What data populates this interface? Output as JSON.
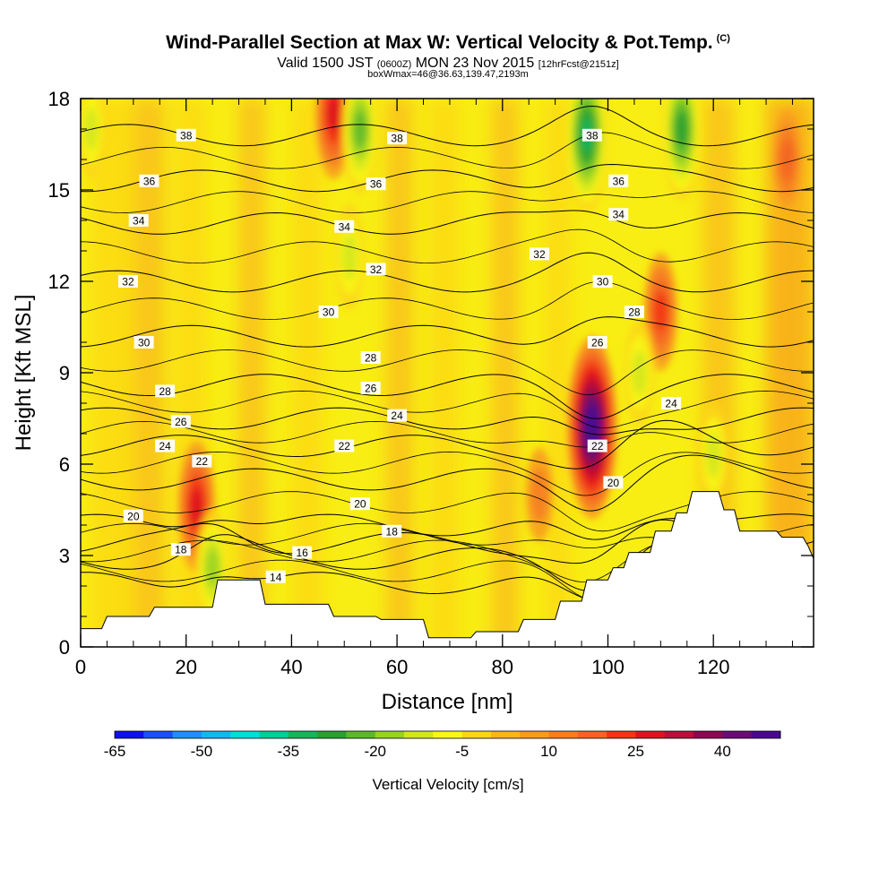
{
  "title": "Wind-Parallel Section at Max W: Vertical Velocity & Pot.Temp.",
  "title_mark": "(C)",
  "subtitle_a": "Valid 1500 JST",
  "subtitle_b": "(0600Z)",
  "subtitle_c": "MON 23 Nov 2015",
  "subtitle_d": "[12hrFcst@2151z]",
  "subtitle2": "boxWmax=46@36.63,139.47,2193m",
  "chart_data": {
    "type": "heatmap",
    "xlabel": "Distance [nm]",
    "ylabel": "Height [Kft MSL]",
    "xlim": [
      0,
      139
    ],
    "ylim": [
      0,
      18
    ],
    "x_ticks": [
      "0",
      "20",
      "40",
      "60",
      "80",
      "100",
      "120"
    ],
    "y_ticks": [
      "0",
      "3",
      "6",
      "9",
      "12",
      "15",
      "18"
    ],
    "colorbar": {
      "title": "Vertical Velocity [cm/s]",
      "tick_labels": [
        "-65",
        "-50",
        "-35",
        "-20",
        "-5",
        "10",
        "25",
        "40"
      ],
      "colors": [
        "#1010ee",
        "#1a50ff",
        "#1f8fff",
        "#12b8ee",
        "#00ded8",
        "#00ce9a",
        "#14b65c",
        "#2aa030",
        "#5cb82a",
        "#98d224",
        "#d2e61e",
        "#f8f818",
        "#fcd616",
        "#fab51a",
        "#f89a20",
        "#f67e22",
        "#f46424",
        "#f23414",
        "#dc1420",
        "#b8103a",
        "#8c0850",
        "#6a0c74",
        "#4a0890"
      ]
    },
    "terrain_height_kft": [
      [
        0,
        0.6
      ],
      [
        4,
        0.6
      ],
      [
        5,
        1.0
      ],
      [
        13,
        1.0
      ],
      [
        14,
        1.3
      ],
      [
        25,
        1.3
      ],
      [
        26,
        2.2
      ],
      [
        34,
        2.2
      ],
      [
        35,
        1.4
      ],
      [
        47,
        1.4
      ],
      [
        48,
        1.0
      ],
      [
        56,
        1.0
      ],
      [
        57,
        0.9
      ],
      [
        65,
        0.9
      ],
      [
        66,
        0.3
      ],
      [
        74,
        0.3
      ],
      [
        75,
        0.5
      ],
      [
        83,
        0.5
      ],
      [
        84,
        0.9
      ],
      [
        90,
        0.9
      ],
      [
        91,
        1.5
      ],
      [
        95,
        1.5
      ],
      [
        96,
        2.2
      ],
      [
        100,
        2.2
      ],
      [
        101,
        2.6
      ],
      [
        103,
        2.6
      ],
      [
        104,
        3.1
      ],
      [
        108,
        3.1
      ],
      [
        109,
        3.8
      ],
      [
        112,
        3.8
      ],
      [
        113,
        4.4
      ],
      [
        115,
        4.4
      ],
      [
        116,
        5.1
      ],
      [
        121,
        5.1
      ],
      [
        122,
        4.5
      ],
      [
        124,
        4.5
      ],
      [
        125,
        3.8
      ],
      [
        132,
        3.8
      ],
      [
        133,
        3.6
      ],
      [
        137,
        3.6
      ],
      [
        138,
        3.3
      ],
      [
        139,
        2.9
      ],
      [
        139,
        2.6
      ]
    ],
    "theta_contours_C": [
      14,
      16,
      18,
      20,
      22,
      24,
      26,
      28,
      30,
      32,
      34,
      36,
      38
    ],
    "theta_label_positions": [
      {
        "v": "38",
        "x": 20,
        "y": 16.8
      },
      {
        "v": "38",
        "x": 60,
        "y": 16.7
      },
      {
        "v": "38",
        "x": 97,
        "y": 16.8
      },
      {
        "v": "36",
        "x": 13,
        "y": 15.3
      },
      {
        "v": "36",
        "x": 56,
        "y": 15.2
      },
      {
        "v": "36",
        "x": 102,
        "y": 15.3
      },
      {
        "v": "34",
        "x": 11,
        "y": 14.0
      },
      {
        "v": "34",
        "x": 50,
        "y": 13.8
      },
      {
        "v": "34",
        "x": 102,
        "y": 14.2
      },
      {
        "v": "32",
        "x": 9,
        "y": 12.0
      },
      {
        "v": "32",
        "x": 56,
        "y": 12.4
      },
      {
        "v": "32",
        "x": 87,
        "y": 12.9
      },
      {
        "v": "30",
        "x": 12,
        "y": 10.0
      },
      {
        "v": "30",
        "x": 47,
        "y": 11.0
      },
      {
        "v": "30",
        "x": 99,
        "y": 12.0
      },
      {
        "v": "28",
        "x": 16,
        "y": 8.4
      },
      {
        "v": "28",
        "x": 55,
        "y": 9.5
      },
      {
        "v": "28",
        "x": 105,
        "y": 11.0
      },
      {
        "v": "26",
        "x": 19,
        "y": 7.4
      },
      {
        "v": "26",
        "x": 55,
        "y": 8.5
      },
      {
        "v": "26",
        "x": 98,
        "y": 10.0
      },
      {
        "v": "24",
        "x": 16,
        "y": 6.6
      },
      {
        "v": "24",
        "x": 60,
        "y": 7.6
      },
      {
        "v": "24",
        "x": 112,
        "y": 8.0
      },
      {
        "v": "22",
        "x": 23,
        "y": 6.1
      },
      {
        "v": "22",
        "x": 50,
        "y": 6.6
      },
      {
        "v": "22",
        "x": 98,
        "y": 6.6
      },
      {
        "v": "20",
        "x": 10,
        "y": 4.3
      },
      {
        "v": "20",
        "x": 53,
        "y": 4.7
      },
      {
        "v": "20",
        "x": 101,
        "y": 5.4
      },
      {
        "v": "18",
        "x": 19,
        "y": 3.2
      },
      {
        "v": "18",
        "x": 59,
        "y": 3.8
      },
      {
        "v": "16",
        "x": 42,
        "y": 3.1
      },
      {
        "v": "14",
        "x": 37,
        "y": 2.3
      }
    ],
    "updraft_cores": [
      {
        "x": 97,
        "y": 7.2,
        "w_cm_s": 46
      },
      {
        "x": 22,
        "y": 4.6,
        "w_cm_s": 25
      },
      {
        "x": 48,
        "y": 17.5,
        "w_cm_s": 25
      },
      {
        "x": 110,
        "y": 11,
        "w_cm_s": 20
      },
      {
        "x": 87,
        "y": 5,
        "w_cm_s": 10
      },
      {
        "x": 134,
        "y": 16,
        "w_cm_s": 12
      }
    ],
    "downdraft_cores": [
      {
        "x": 96,
        "y": 16.8,
        "w_cm_s": -35
      },
      {
        "x": 53,
        "y": 17,
        "w_cm_s": -25
      },
      {
        "x": 114,
        "y": 17,
        "w_cm_s": -30
      },
      {
        "x": 51,
        "y": 12.8,
        "w_cm_s": -15
      },
      {
        "x": 106,
        "y": 9,
        "w_cm_s": -15
      },
      {
        "x": 120,
        "y": 6.3,
        "w_cm_s": -15
      },
      {
        "x": 25,
        "y": 2.6,
        "w_cm_s": -20
      },
      {
        "x": 2,
        "y": 17,
        "w_cm_s": -12
      }
    ]
  }
}
